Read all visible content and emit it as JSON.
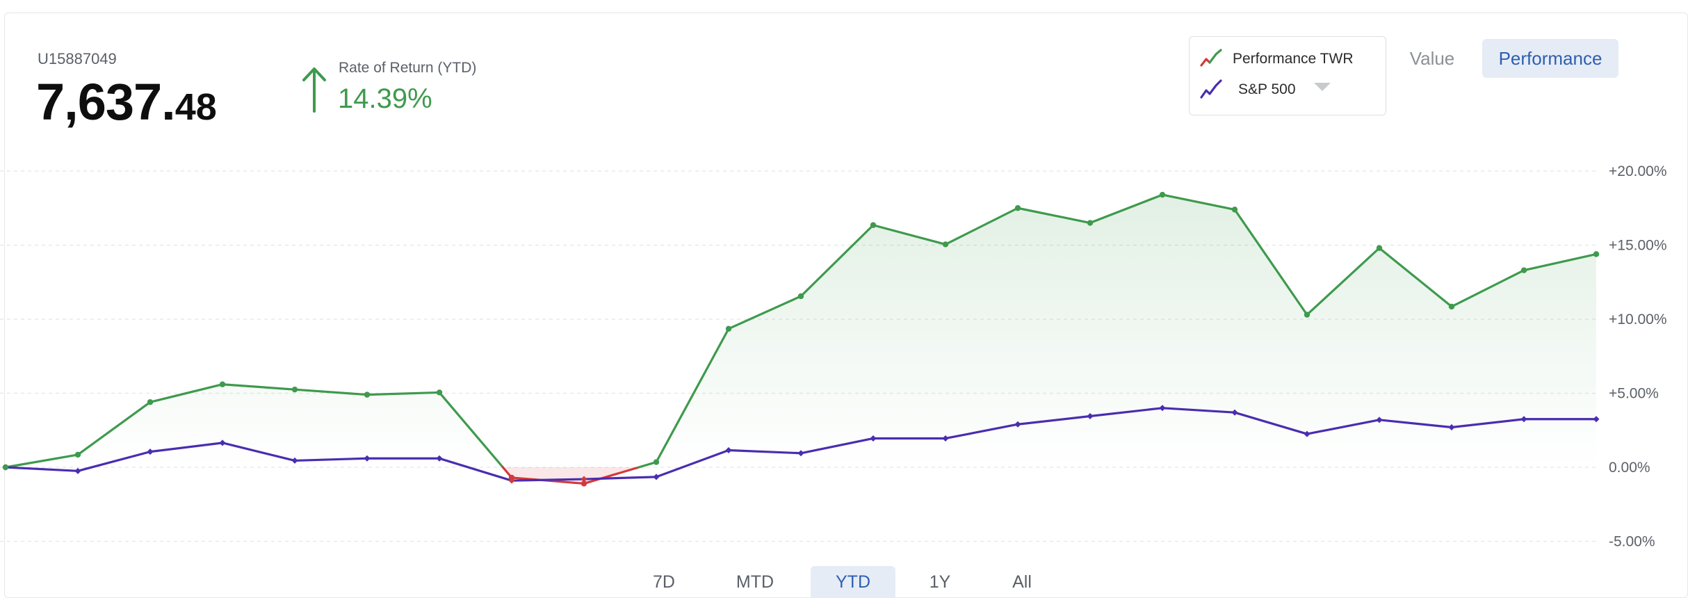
{
  "account": {
    "id": "U15887049",
    "balance_int": "7,637.",
    "balance_dec": "48"
  },
  "rate_of_return": {
    "label": "Rate of Return (YTD)",
    "value": "14.39%",
    "direction_icon": "arrow-up-icon"
  },
  "legend": {
    "items": [
      {
        "label": "Performance TWR",
        "icon": "trend-line-icon"
      },
      {
        "label": "S&P 500",
        "icon": "trend-line-icon"
      }
    ]
  },
  "view_toggle": {
    "value_label": "Value",
    "performance_label": "Performance",
    "active": "Performance"
  },
  "period_tabs": {
    "items": [
      "7D",
      "MTD",
      "YTD",
      "1Y",
      "All"
    ],
    "active": "YTD"
  },
  "colors": {
    "performance_positive": "#3e9a4d",
    "performance_negative": "#d23a3a",
    "benchmark": "#4a2db0",
    "accent": "#2d5fb0"
  },
  "chart_data": {
    "type": "line",
    "y_tick_labels": [
      "+20.00%",
      "+15.00%",
      "+10.00%",
      "+5.00%",
      "0.00%",
      "-5.00%"
    ],
    "y_ticks": [
      20,
      15,
      10,
      5,
      0,
      -5
    ],
    "ylim": [
      -5,
      20
    ],
    "grid": true,
    "series": [
      {
        "name": "Performance TWR",
        "values": [
          0.0,
          0.85,
          4.4,
          5.6,
          5.25,
          4.9,
          5.05,
          -0.7,
          -1.1,
          0.35,
          9.35,
          11.55,
          16.35,
          15.05,
          17.5,
          16.5,
          18.4,
          17.4,
          10.3,
          14.8,
          10.85,
          13.3,
          14.39
        ]
      },
      {
        "name": "S&P 500",
        "values": [
          0.0,
          -0.25,
          1.05,
          1.65,
          0.45,
          0.6,
          0.6,
          -0.9,
          -0.8,
          -0.65,
          1.15,
          0.95,
          1.95,
          1.95,
          2.9,
          3.45,
          4.0,
          3.7,
          2.25,
          3.2,
          2.7,
          3.25,
          3.25
        ]
      }
    ]
  }
}
